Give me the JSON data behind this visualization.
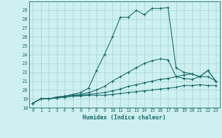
{
  "xlabel": "Humidex (Indice chaleur)",
  "background_color": "#cff0f0",
  "grid_color": "#a8d8d8",
  "line_color": "#1a6b6b",
  "xlim": [
    -0.5,
    23.5
  ],
  "ylim": [
    18,
    30
  ],
  "yticks": [
    18,
    19,
    20,
    21,
    22,
    23,
    24,
    25,
    26,
    27,
    28,
    29
  ],
  "xticks": [
    0,
    1,
    2,
    3,
    4,
    5,
    6,
    7,
    8,
    9,
    10,
    11,
    12,
    13,
    14,
    15,
    16,
    17,
    18,
    19,
    20,
    21,
    22,
    23
  ],
  "series": [
    [
      18.5,
      19.0,
      19.0,
      19.1,
      19.2,
      19.3,
      19.3,
      19.4,
      19.4,
      19.4,
      19.5,
      19.6,
      19.7,
      19.8,
      19.9,
      20.0,
      20.1,
      20.2,
      20.3,
      20.5,
      20.5,
      20.6,
      20.5,
      20.5
    ],
    [
      18.5,
      19.0,
      19.0,
      19.1,
      19.2,
      19.3,
      19.4,
      19.5,
      19.6,
      19.7,
      19.9,
      20.1,
      20.4,
      20.6,
      20.8,
      21.0,
      21.2,
      21.3,
      21.5,
      21.7,
      21.8,
      21.5,
      21.5,
      21.0
    ],
    [
      18.5,
      19.0,
      19.0,
      19.2,
      19.3,
      19.4,
      19.5,
      19.7,
      20.0,
      20.4,
      21.0,
      21.5,
      22.0,
      22.5,
      23.0,
      23.3,
      23.5,
      23.4,
      21.5,
      21.3,
      21.2,
      21.5,
      22.2,
      21.0
    ],
    [
      18.5,
      19.0,
      19.0,
      19.2,
      19.3,
      19.5,
      19.7,
      20.2,
      22.2,
      24.0,
      26.0,
      28.2,
      28.2,
      29.0,
      28.5,
      29.2,
      29.2,
      29.3,
      22.5,
      22.0,
      21.8,
      21.5,
      22.2,
      21.0
    ]
  ]
}
